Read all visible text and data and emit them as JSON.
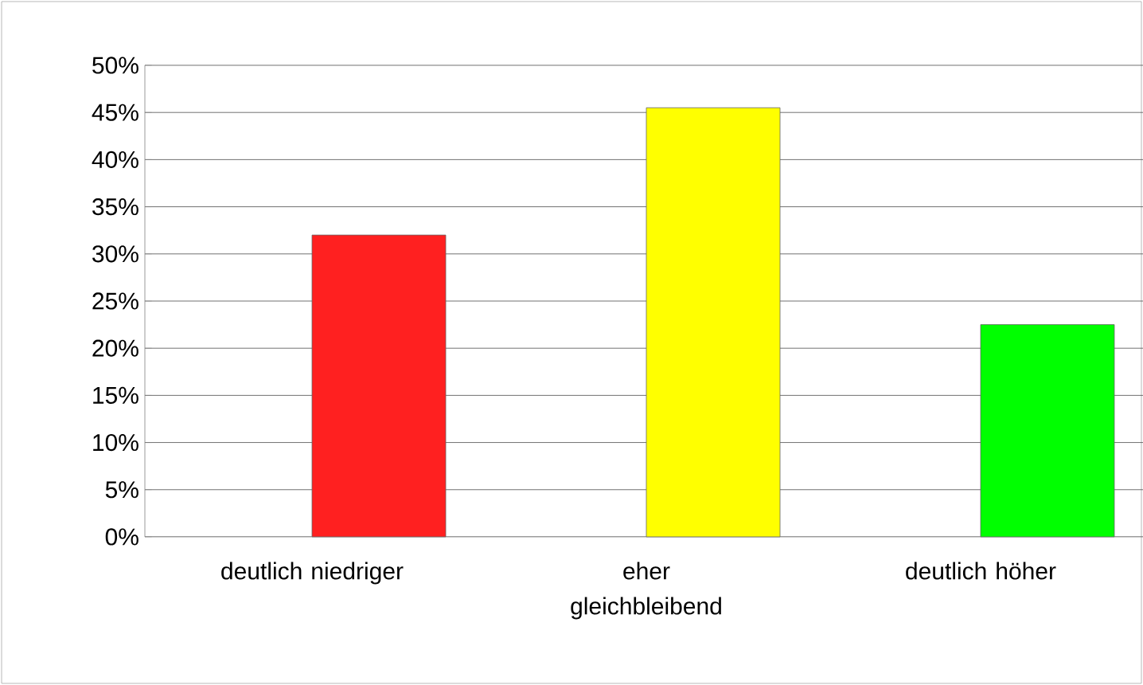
{
  "chart_data": {
    "type": "bar",
    "categories": [
      "deutlich niedriger",
      "eher gleichbleibend",
      "deutlich höher"
    ],
    "values": [
      32,
      45.5,
      22.5
    ],
    "colors": [
      "#ff2020",
      "#ffff00",
      "#00ff00"
    ],
    "ylim": [
      0,
      50
    ],
    "yticks": [
      {
        "value": 0,
        "label": "0%"
      },
      {
        "value": 5,
        "label": "5%"
      },
      {
        "value": 10,
        "label": "10%"
      },
      {
        "value": 15,
        "label": "15%"
      },
      {
        "value": 20,
        "label": "20%"
      },
      {
        "value": 25,
        "label": "25%"
      },
      {
        "value": 30,
        "label": "30%"
      },
      {
        "value": 35,
        "label": "35%"
      },
      {
        "value": 40,
        "label": "40%"
      },
      {
        "value": 45,
        "label": "45%"
      },
      {
        "value": 50,
        "label": "50%"
      }
    ],
    "grid": "y"
  }
}
